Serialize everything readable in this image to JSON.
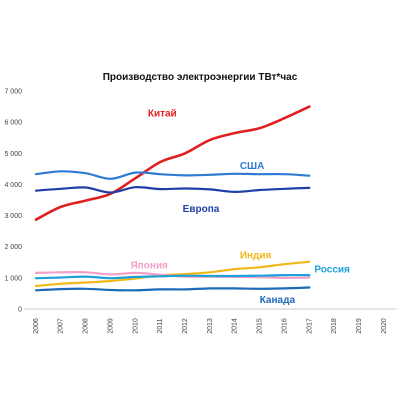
{
  "chart_data": {
    "type": "line",
    "title": "Производство электроэнергии ТВт*час",
    "xlabel": "",
    "ylabel": "",
    "x": [
      2006,
      2007,
      2008,
      2009,
      2010,
      2011,
      2012,
      2013,
      2014,
      2015,
      2016,
      2017
    ],
    "x_ticks": [
      "2006",
      "2007",
      "2008",
      "2009",
      "2010",
      "2011",
      "2012",
      "2013",
      "2014",
      "2015",
      "2016",
      "2017",
      "2018",
      "2019",
      "2020"
    ],
    "xlim": [
      2006,
      2020
    ],
    "ylim": [
      0,
      7000
    ],
    "y_ticks": [
      "0",
      "1 000",
      "2 000",
      "3 000",
      "4 000",
      "5 000",
      "6 000",
      "7 000"
    ],
    "grid": false,
    "series": [
      {
        "name": "Китай",
        "color": "#e02020",
        "values": [
          2870,
          3280,
          3480,
          3700,
          4200,
          4720,
          5000,
          5430,
          5650,
          5810,
          6130,
          6500
        ]
      },
      {
        "name": "США",
        "color": "#2f7bd2",
        "values": [
          4330,
          4420,
          4360,
          4180,
          4380,
          4330,
          4290,
          4310,
          4340,
          4330,
          4330,
          4280
        ]
      },
      {
        "name": "Европа",
        "color": "#1f3fa8",
        "values": [
          3800,
          3860,
          3900,
          3740,
          3910,
          3850,
          3870,
          3840,
          3760,
          3820,
          3860,
          3890
        ]
      },
      {
        "name": "Индия",
        "color": "#f2b81a",
        "values": [
          740,
          810,
          850,
          900,
          980,
          1080,
          1120,
          1180,
          1280,
          1340,
          1440,
          1520
        ]
      },
      {
        "name": "Япония",
        "color": "#f2a0c8",
        "values": [
          1160,
          1180,
          1180,
          1110,
          1160,
          1100,
          1040,
          1040,
          1030,
          1020,
          1000,
          1010
        ]
      },
      {
        "name": "Россия",
        "color": "#1ea0d8",
        "values": [
          990,
          1010,
          1040,
          990,
          1030,
          1050,
          1070,
          1060,
          1060,
          1070,
          1090,
          1090
        ]
      },
      {
        "name": "Канада",
        "color": "#1c6ab8",
        "values": [
          600,
          640,
          650,
          610,
          600,
          630,
          630,
          660,
          660,
          650,
          660,
          690
        ]
      }
    ]
  }
}
